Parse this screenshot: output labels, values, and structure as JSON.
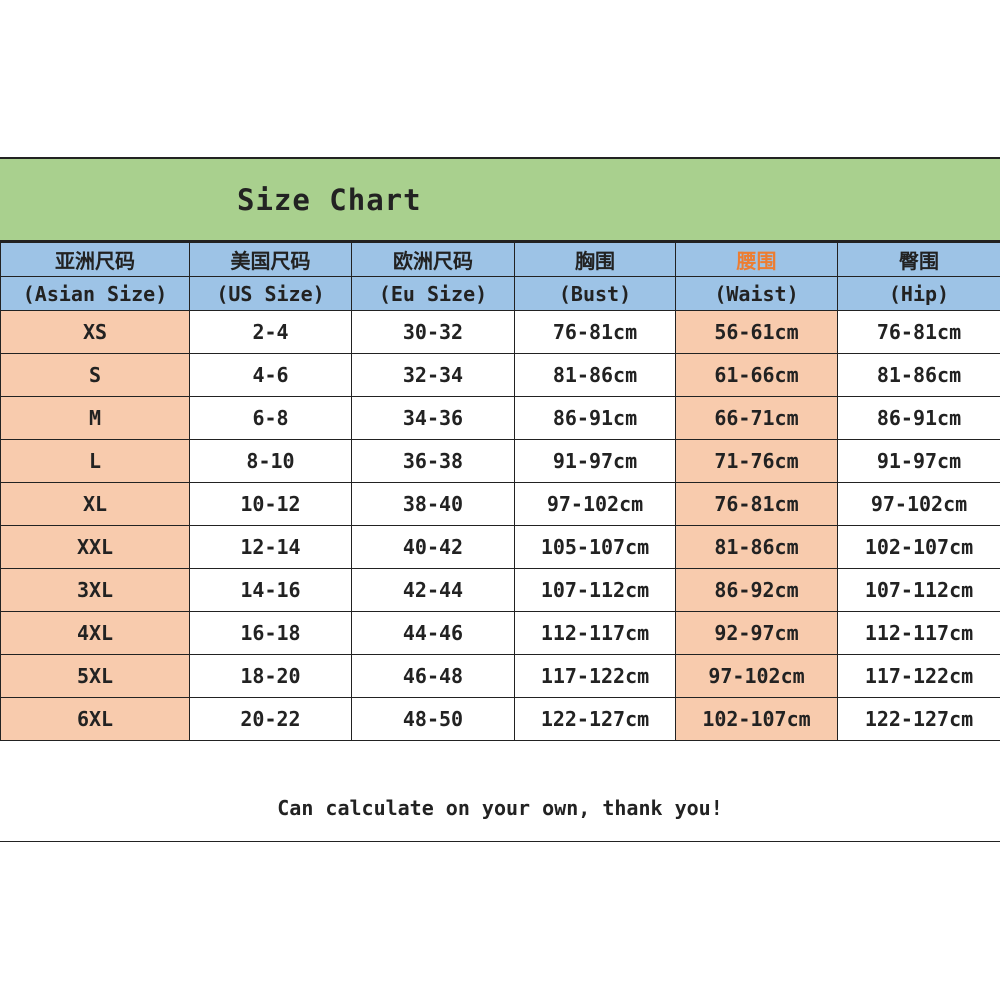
{
  "title": "Size Chart",
  "headers_cn": [
    "亚洲尺码",
    "美国尺码",
    "欧洲尺码",
    "胸围",
    "腰围",
    "臀围"
  ],
  "headers_en": [
    "(Asian Size)",
    "(US Size)",
    "(Eu Size)",
    "(Bust)",
    "(Waist)",
    "(Hip)"
  ],
  "rows": [
    [
      "XS",
      "2-4",
      "30-32",
      "76-81cm",
      "56-61cm",
      "76-81cm"
    ],
    [
      "S",
      "4-6",
      "32-34",
      "81-86cm",
      "61-66cm",
      "81-86cm"
    ],
    [
      "M",
      "6-8",
      "34-36",
      "86-91cm",
      "66-71cm",
      "86-91cm"
    ],
    [
      "L",
      "8-10",
      "36-38",
      "91-97cm",
      "71-76cm",
      "91-97cm"
    ],
    [
      "XL",
      "10-12",
      "38-40",
      "97-102cm",
      "76-81cm",
      "97-102cm"
    ],
    [
      "XXL",
      "12-14",
      "40-42",
      "105-107cm",
      "81-86cm",
      "102-107cm"
    ],
    [
      "3XL",
      "14-16",
      "42-44",
      "107-112cm",
      "86-92cm",
      "107-112cm"
    ],
    [
      "4XL",
      "16-18",
      "44-46",
      "112-117cm",
      "92-97cm",
      "112-117cm"
    ],
    [
      "5XL",
      "18-20",
      "46-48",
      "117-122cm",
      "97-102cm",
      "117-122cm"
    ],
    [
      "6XL",
      "20-22",
      "48-50",
      "122-127cm",
      "102-107cm",
      "122-127cm"
    ]
  ],
  "footer": "Can calculate on your own, thank you!",
  "colors": {
    "title_bg": "#a9d08e",
    "header_bg": "#9dc3e6",
    "highlight_bg": "#f8cbad",
    "waist_header_text": "#ed7d31"
  }
}
